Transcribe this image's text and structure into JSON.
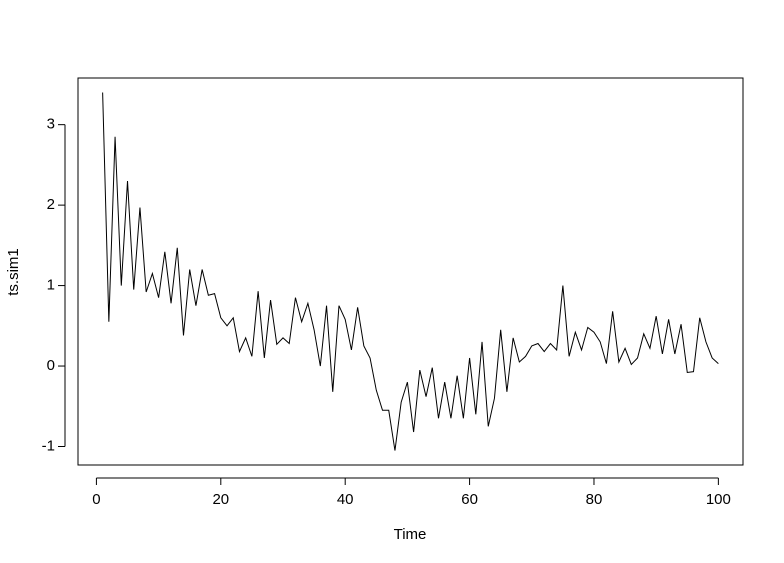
{
  "chart_data": {
    "type": "line",
    "x_label": "Time",
    "y_label": "ts.sim1",
    "x": [
      1,
      2,
      3,
      4,
      5,
      6,
      7,
      8,
      9,
      10,
      11,
      12,
      13,
      14,
      15,
      16,
      17,
      18,
      19,
      20,
      21,
      22,
      23,
      24,
      25,
      26,
      27,
      28,
      29,
      30,
      31,
      32,
      33,
      34,
      35,
      36,
      37,
      38,
      39,
      40,
      41,
      42,
      43,
      44,
      45,
      46,
      47,
      48,
      49,
      50,
      51,
      52,
      53,
      54,
      55,
      56,
      57,
      58,
      59,
      60,
      61,
      62,
      63,
      64,
      65,
      66,
      67,
      68,
      69,
      70,
      71,
      72,
      73,
      74,
      75,
      76,
      77,
      78,
      79,
      80,
      81,
      82,
      83,
      84,
      85,
      86,
      87,
      88,
      89,
      90,
      91,
      92,
      93,
      94,
      95,
      96,
      97,
      98,
      99,
      100
    ],
    "values": [
      3.4,
      0.55,
      2.85,
      1.0,
      2.3,
      0.95,
      1.97,
      0.92,
      1.15,
      0.85,
      1.42,
      0.78,
      1.47,
      0.38,
      1.2,
      0.75,
      1.2,
      0.88,
      0.9,
      0.6,
      0.5,
      0.6,
      0.18,
      0.35,
      0.12,
      0.93,
      0.1,
      0.82,
      0.27,
      0.35,
      0.28,
      0.85,
      0.55,
      0.78,
      0.45,
      0.0,
      0.75,
      -0.32,
      0.75,
      0.58,
      0.2,
      0.73,
      0.25,
      0.1,
      -0.3,
      -0.55,
      -0.55,
      -1.05,
      -0.45,
      -0.2,
      -0.82,
      -0.05,
      -0.38,
      -0.02,
      -0.65,
      -0.2,
      -0.65,
      -0.12,
      -0.65,
      0.1,
      -0.6,
      0.3,
      -0.75,
      -0.4,
      0.45,
      -0.32,
      0.35,
      0.05,
      0.12,
      0.25,
      0.28,
      0.18,
      0.28,
      0.2,
      1.0,
      0.12,
      0.42,
      0.2,
      0.48,
      0.42,
      0.3,
      0.03,
      0.68,
      0.05,
      0.22,
      0.02,
      0.1,
      0.4,
      0.22,
      0.62,
      0.15,
      0.58,
      0.15,
      0.52,
      -0.08,
      -0.07,
      0.6,
      0.3,
      0.1,
      0.03
    ],
    "color": "#000000",
    "xlim": [
      -2.96,
      103.96
    ],
    "ylim": [
      -1.23,
      3.58
    ],
    "xticks": [
      0,
      20,
      40,
      60,
      80,
      100
    ],
    "yticks": [
      -1,
      0,
      1,
      2,
      3
    ]
  }
}
